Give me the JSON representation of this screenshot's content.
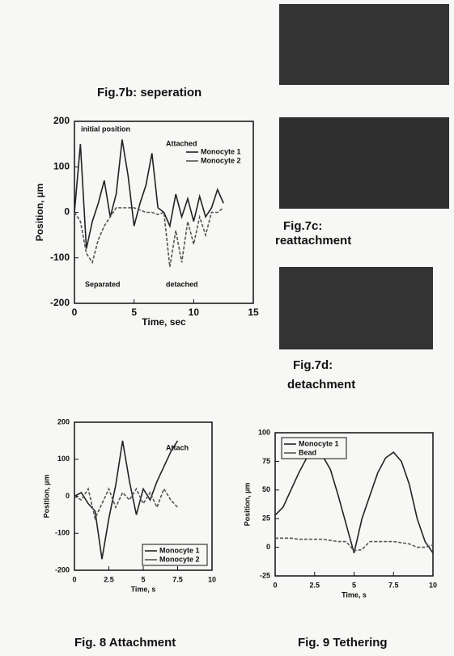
{
  "captions": {
    "fig7b": "Fig.7b: seperation",
    "fig7c": [
      "Fig.7c:",
      "reattachment"
    ],
    "fig7d": [
      "Fig.7d:",
      "detachment"
    ],
    "fig8": "Fig. 8 Attachment",
    "fig9": "Fig. 9 Tethering"
  },
  "chart_data": [
    {
      "type": "line",
      "xlabel": "Time, sec",
      "ylabel": "Position, µm",
      "xlim": [
        0,
        15
      ],
      "xticks": [
        0,
        5,
        10,
        15
      ],
      "ylim": [
        -200,
        200
      ],
      "yticks": [
        -200,
        -100,
        0,
        100,
        200
      ],
      "legend": "upper right",
      "annotations": [
        "initial position",
        "Attached",
        "Separated",
        "detached"
      ],
      "x": [
        0,
        0.5,
        1,
        1.5,
        2,
        2.5,
        3,
        3.5,
        4,
        4.5,
        5,
        5.5,
        6,
        6.5,
        7,
        7.5,
        8,
        8.5,
        9,
        9.5,
        10,
        10.5,
        11,
        11.5,
        12,
        12.5
      ],
      "series": [
        {
          "name": "Monocyte 1",
          "color": "#222",
          "values": [
            0,
            150,
            -80,
            -20,
            20,
            70,
            -10,
            40,
            160,
            80,
            -30,
            20,
            60,
            130,
            10,
            0,
            -30,
            40,
            -10,
            30,
            -20,
            35,
            -10,
            10,
            50,
            20
          ]
        },
        {
          "name": "Monocyte 2",
          "color": "#555",
          "values": [
            0,
            -20,
            -90,
            -110,
            -60,
            -30,
            -10,
            10,
            10,
            10,
            10,
            5,
            0,
            0,
            -5,
            0,
            -120,
            -40,
            -110,
            -20,
            -70,
            -10,
            -50,
            0,
            0,
            10
          ]
        }
      ]
    },
    {
      "type": "line",
      "xlabel": "Time, s",
      "ylabel": "Position, µm",
      "xlim": [
        0,
        10
      ],
      "xticks": [
        0,
        2.5,
        5,
        7.5,
        10
      ],
      "ylim": [
        -200,
        200
      ],
      "yticks": [
        -200,
        -100,
        0,
        100,
        200
      ],
      "legend": "lower right",
      "annotations": [
        "Attach"
      ],
      "x": [
        0,
        0.5,
        1,
        1.5,
        2,
        2.5,
        3,
        3.5,
        4,
        4.5,
        5,
        5.5,
        6,
        6.5,
        7,
        7.5
      ],
      "series": [
        {
          "name": "Monocyte 1",
          "color": "#222",
          "values": [
            0,
            10,
            -20,
            -40,
            -170,
            -60,
            30,
            150,
            40,
            -50,
            20,
            -10,
            40,
            80,
            120,
            150
          ]
        },
        {
          "name": "Monocyte 2",
          "color": "#555",
          "values": [
            0,
            -10,
            20,
            -60,
            -20,
            20,
            -30,
            10,
            -10,
            20,
            -20,
            10,
            -30,
            20,
            -10,
            -30
          ]
        }
      ]
    },
    {
      "type": "line",
      "xlabel": "Time, s",
      "ylabel": "Position, µm",
      "xlim": [
        0,
        10
      ],
      "xticks": [
        0,
        2.5,
        5,
        7.5,
        10
      ],
      "ylim": [
        -25,
        100
      ],
      "yticks": [
        -25,
        0,
        25,
        50,
        75,
        100
      ],
      "legend": "upper left",
      "annotations": [],
      "x": [
        0,
        0.5,
        1,
        1.5,
        2,
        2.5,
        3,
        3.5,
        4,
        4.5,
        5,
        5.5,
        6,
        6.5,
        7,
        7.5,
        8,
        8.5,
        9,
        9.5,
        10
      ],
      "series": [
        {
          "name": "Monocyte 1",
          "color": "#222",
          "values": [
            28,
            35,
            50,
            65,
            78,
            83,
            80,
            68,
            45,
            20,
            -5,
            25,
            45,
            65,
            78,
            83,
            75,
            55,
            25,
            5,
            -5
          ]
        },
        {
          "name": "Bead",
          "color": "#555",
          "values": [
            8,
            8,
            8,
            7,
            7,
            7,
            7,
            6,
            5,
            5,
            -3,
            -2,
            5,
            5,
            5,
            5,
            4,
            3,
            0,
            0,
            2
          ]
        }
      ]
    }
  ]
}
